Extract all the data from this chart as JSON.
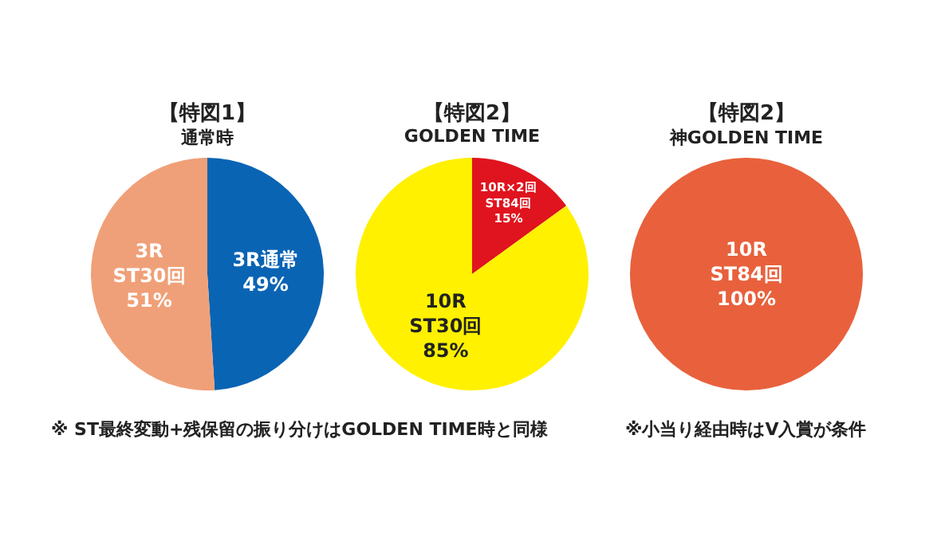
{
  "chart_data": [
    {
      "type": "pie",
      "title": "【特図1】",
      "subtitle": "通常時",
      "categories": [
        "3R通常",
        "3R\nST30回"
      ],
      "values": [
        49,
        51
      ],
      "value_labels": [
        "49%",
        "51%"
      ],
      "colors": [
        "#0a64b4",
        "#f0a078"
      ],
      "annotations": [
        "※ ST最終変動+残保留の振り分けはGOLDEN TIME時と同様"
      ]
    },
    {
      "type": "pie",
      "title": "【特図2】",
      "subtitle": "GOLDEN TIME",
      "categories": [
        "10R×2回\nST84回",
        "10R\nST30回"
      ],
      "values": [
        15,
        85
      ],
      "value_labels": [
        "15%",
        "85%"
      ],
      "colors": [
        "#e0141e",
        "#fff100"
      ]
    },
    {
      "type": "pie",
      "title": "【特図2】",
      "subtitle": "神GOLDEN TIME",
      "categories": [
        "10R\nST84回"
      ],
      "values": [
        100
      ],
      "value_labels": [
        "100%"
      ],
      "colors": [
        "#e8613c"
      ],
      "annotations": [
        "※小当り経由時はV入賞が条件"
      ]
    }
  ]
}
